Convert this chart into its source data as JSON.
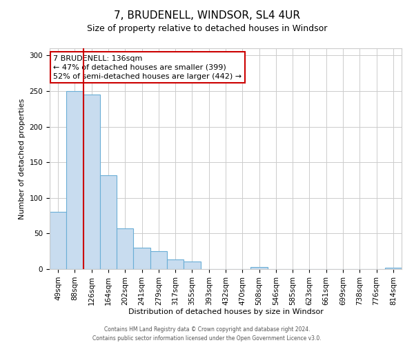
{
  "title": "7, BRUDENELL, WINDSOR, SL4 4UR",
  "subtitle": "Size of property relative to detached houses in Windsor",
  "xlabel": "Distribution of detached houses by size in Windsor",
  "ylabel": "Number of detached properties",
  "bar_labels": [
    "49sqm",
    "88sqm",
    "126sqm",
    "164sqm",
    "202sqm",
    "241sqm",
    "279sqm",
    "317sqm",
    "355sqm",
    "393sqm",
    "432sqm",
    "470sqm",
    "508sqm",
    "546sqm",
    "585sqm",
    "623sqm",
    "661sqm",
    "699sqm",
    "738sqm",
    "776sqm",
    "814sqm"
  ],
  "bar_values": [
    80,
    250,
    245,
    132,
    57,
    30,
    25,
    14,
    11,
    0,
    0,
    0,
    3,
    0,
    0,
    0,
    0,
    0,
    0,
    0,
    2
  ],
  "bar_color": "#c8dcef",
  "bar_edge_color": "#6aaed6",
  "ylim": [
    0,
    310
  ],
  "yticks": [
    0,
    50,
    100,
    150,
    200,
    250,
    300
  ],
  "property_line_color": "#cc0000",
  "annotation_title": "7 BRUDENELL: 136sqm",
  "annotation_line1": "← 47% of detached houses are smaller (399)",
  "annotation_line2": "52% of semi-detached houses are larger (442) →",
  "annotation_box_color": "#ffffff",
  "annotation_box_edge": "#cc0000",
  "footer1": "Contains HM Land Registry data © Crown copyright and database right 2024.",
  "footer2": "Contains public sector information licensed under the Open Government Licence v3.0.",
  "bg_color": "#ffffff",
  "grid_color": "#cccccc",
  "title_fontsize": 11,
  "subtitle_fontsize": 9,
  "xlabel_fontsize": 8,
  "ylabel_fontsize": 8,
  "tick_fontsize": 7.5,
  "annot_fontsize": 8
}
